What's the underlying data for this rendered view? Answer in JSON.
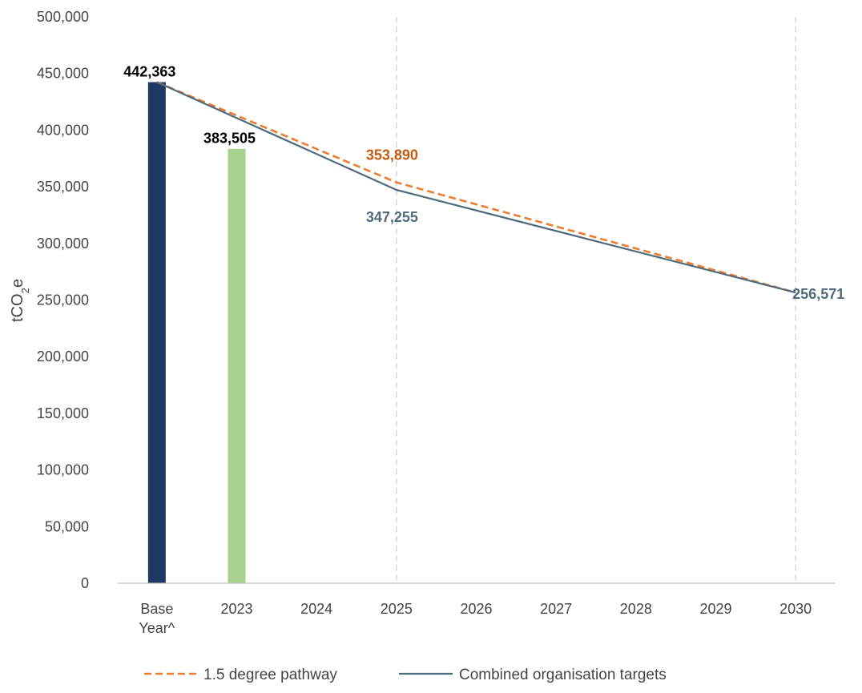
{
  "chart_data": {
    "type": "bar",
    "categories": [
      "Base Year^",
      "2023",
      "2024",
      "2025",
      "2026",
      "2027",
      "2028",
      "2029",
      "2030"
    ],
    "category_lines": [
      [
        "Base",
        "Year^"
      ],
      [
        "2023"
      ],
      [
        "2024"
      ],
      [
        "2025"
      ],
      [
        "2026"
      ],
      [
        "2027"
      ],
      [
        "2028"
      ],
      [
        "2029"
      ],
      [
        "2030"
      ]
    ],
    "ylabel": "tCO2e",
    "ylabel_main": "tCO",
    "ylabel_sub": "2",
    "ylabel_tail": "e",
    "ylim": [
      0,
      500000
    ],
    "yticks": [
      0,
      50000,
      100000,
      150000,
      200000,
      250000,
      300000,
      350000,
      400000,
      450000,
      500000
    ],
    "ytick_labels": [
      "0",
      "50,000",
      "100,000",
      "150,000",
      "200,000",
      "250,000",
      "300,000",
      "350,000",
      "400,000",
      "450,000",
      "500,000"
    ],
    "vertical_guides_at": [
      "2025",
      "2030"
    ],
    "bars": [
      {
        "category": "Base Year^",
        "value": 442363,
        "label": "442,363",
        "color": "#1f3864"
      },
      {
        "category": "2023",
        "value": 383505,
        "label": "383,505",
        "color": "#a9d18e"
      }
    ],
    "series": [
      {
        "name": "1.5 degree pathway",
        "style": "dashed",
        "color": "#ed7d31",
        "points": [
          [
            "Base Year^",
            442363
          ],
          [
            "2025",
            353890
          ],
          [
            "2030",
            256571
          ]
        ],
        "labels": [
          {
            "category": "2025",
            "value": 353890,
            "label": "353,890",
            "color": "#c55a11"
          }
        ]
      },
      {
        "name": "Combined organisation targets",
        "style": "solid",
        "color": "#4e6b7c",
        "points": [
          [
            "Base Year^",
            442363
          ],
          [
            "2025",
            347255
          ],
          [
            "2030",
            256571
          ]
        ],
        "labels": [
          {
            "category": "2025",
            "value": 347255,
            "label": "347,255",
            "color": "#4e6b7c"
          },
          {
            "category": "2030",
            "value": 256571,
            "label": "256,571",
            "color": "#4e6b7c"
          }
        ]
      }
    ],
    "legend_position": "bottom",
    "grid": false
  }
}
